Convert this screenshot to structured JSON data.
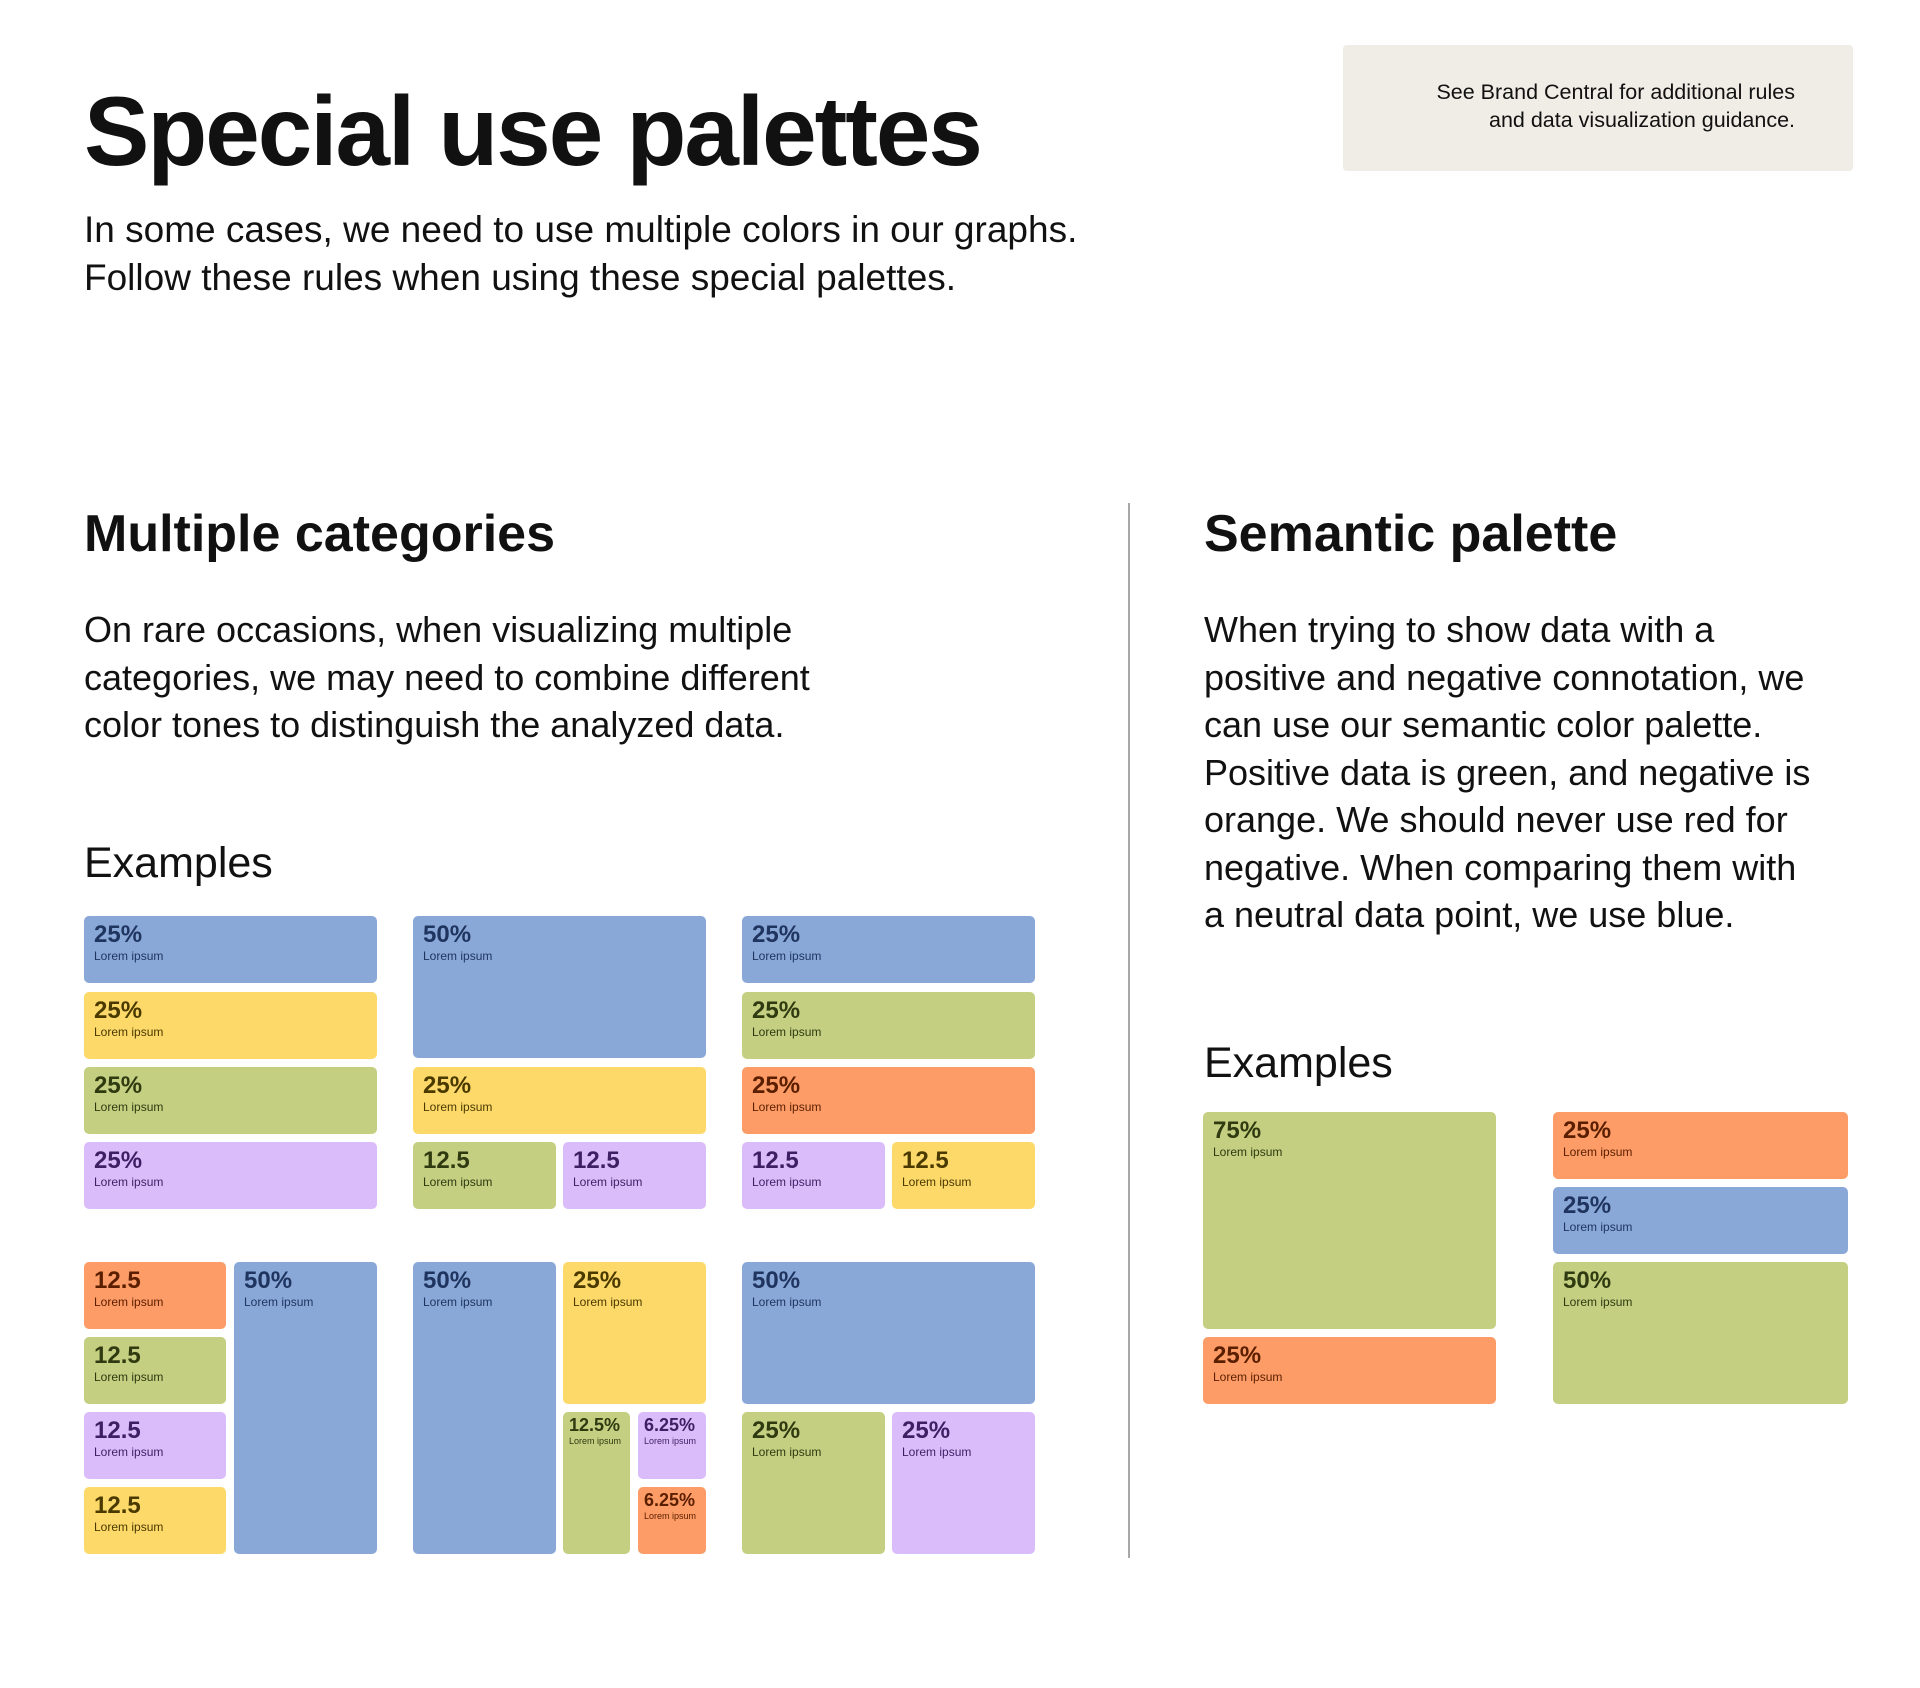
{
  "header": {
    "title": "Special use palettes",
    "intro_lines": [
      "In some cases, we need to use multiple colors in our graphs.",
      "Follow these rules when using these special palettes."
    ],
    "note_lines": [
      "See Brand Central for additional rules",
      "and data visualization guidance."
    ]
  },
  "multiple": {
    "heading": "Multiple categories",
    "lines": [
      "On rare occasions, when visualizing multiple",
      "categories, we may need to combine different",
      "color tones to distinguish the analyzed data."
    ],
    "examples_label": "Examples"
  },
  "semantic": {
    "heading": "Semantic palette",
    "lines": [
      "When trying to show data with a",
      "positive and negative connotation, we",
      "can use our semantic color palette.",
      "Positive data is green, and negative is",
      "orange. We should never use red for",
      "negative. When comparing them with",
      "a neutral data point, we use blue."
    ],
    "examples_label": "Examples"
  },
  "colors": {
    "blue": "#8aa8d7",
    "yellow": "#fdd96a",
    "green": "#c4cf82",
    "purple": "#dbbcfb",
    "orange": "#fd9c66",
    "note_bg": "#f0ece6",
    "divider": "#a8a8a8"
  },
  "tile_label": "Lorem ipsum",
  "examples": {
    "ex1": [
      {
        "value": "25%",
        "color": "blue"
      },
      {
        "value": "25%",
        "color": "yellow"
      },
      {
        "value": "25%",
        "color": "green"
      },
      {
        "value": "25%",
        "color": "purple"
      }
    ],
    "ex2": [
      {
        "value": "50%",
        "color": "blue"
      },
      {
        "value": "25%",
        "color": "yellow"
      },
      {
        "value": "12.5",
        "color": "green"
      },
      {
        "value": "12.5",
        "color": "purple"
      }
    ],
    "ex3": [
      {
        "value": "25%",
        "color": "blue"
      },
      {
        "value": "25%",
        "color": "green"
      },
      {
        "value": "25%",
        "color": "orange"
      },
      {
        "value": "12.5",
        "color": "purple"
      },
      {
        "value": "12.5",
        "color": "yellow"
      }
    ],
    "ex4": [
      {
        "value": "12.5",
        "color": "orange"
      },
      {
        "value": "12.5",
        "color": "green"
      },
      {
        "value": "12.5",
        "color": "purple"
      },
      {
        "value": "12.5",
        "color": "yellow"
      },
      {
        "value": "50%",
        "color": "blue"
      }
    ],
    "ex5": [
      {
        "value": "50%",
        "color": "blue"
      },
      {
        "value": "25%",
        "color": "yellow"
      },
      {
        "value": "12.5%",
        "color": "green"
      },
      {
        "value": "6.25%",
        "color": "purple"
      },
      {
        "value": "6.25%",
        "color": "orange"
      }
    ],
    "ex6": [
      {
        "value": "50%",
        "color": "blue"
      },
      {
        "value": "25%",
        "color": "green"
      },
      {
        "value": "25%",
        "color": "purple"
      }
    ],
    "sem1": [
      {
        "value": "75%",
        "color": "green"
      },
      {
        "value": "25%",
        "color": "orange"
      }
    ],
    "sem2": [
      {
        "value": "25%",
        "color": "orange"
      },
      {
        "value": "25%",
        "color": "blue"
      },
      {
        "value": "50%",
        "color": "green"
      }
    ]
  }
}
